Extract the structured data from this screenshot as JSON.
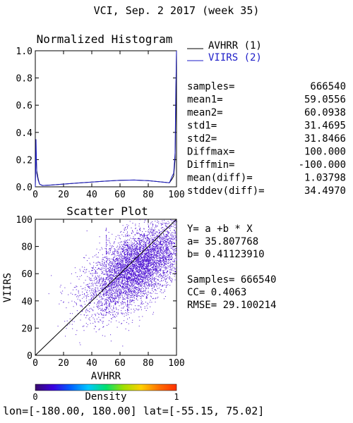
{
  "header": {
    "title": "VCI,  Sep. 2 2017 (week 35)"
  },
  "colors": {
    "avhrr": "#000000",
    "viirs": "#1c1cc8",
    "point": "#4b0fd2",
    "axis": "#000000"
  },
  "chart_data": [
    {
      "type": "line",
      "title": "Normalized Histogram",
      "xlim": [
        0,
        100
      ],
      "ylim": [
        0,
        1.0
      ],
      "xticks": [
        "0",
        "20",
        "40",
        "60",
        "80",
        "100"
      ],
      "yticks": [
        "0.0",
        "0.2",
        "0.4",
        "0.6",
        "0.8",
        "1.0"
      ],
      "legend": {
        "placement": "right-top",
        "entries": [
          "AVHRR (1)",
          "VIIRS (2)"
        ]
      },
      "series": [
        {
          "name": "AVHRR (1)",
          "x": [
            0,
            0.5,
            1,
            2,
            3,
            5,
            10,
            20,
            30,
            40,
            50,
            60,
            70,
            80,
            90,
            95,
            97,
            98,
            99,
            99.5,
            100
          ],
          "y": [
            0.0,
            0.27,
            0.12,
            0.06,
            0.02,
            0.01,
            0.012,
            0.02,
            0.028,
            0.035,
            0.042,
            0.048,
            0.05,
            0.045,
            0.035,
            0.03,
            0.06,
            0.08,
            0.2,
            0.6,
            1.0
          ]
        },
        {
          "name": "VIIRS (2)",
          "x": [
            0,
            0.5,
            1,
            2,
            3,
            5,
            10,
            20,
            30,
            40,
            50,
            60,
            70,
            80,
            90,
            95,
            97,
            98,
            99,
            99.5,
            100
          ],
          "y": [
            0.0,
            0.35,
            0.1,
            0.05,
            0.02,
            0.01,
            0.012,
            0.02,
            0.028,
            0.035,
            0.042,
            0.048,
            0.05,
            0.045,
            0.035,
            0.03,
            0.08,
            0.1,
            0.25,
            0.7,
            1.0
          ]
        }
      ],
      "stats": [
        {
          "label": "samples=",
          "value": "666540"
        },
        {
          "label": "mean1=",
          "value": "59.0556"
        },
        {
          "label": "mean2=",
          "value": "60.0938"
        },
        {
          "label": "std1=",
          "value": "31.4695"
        },
        {
          "label": "std2=",
          "value": "31.8466"
        },
        {
          "label": "Diffmax=",
          "value": "100.000"
        },
        {
          "label": "Diffmin=",
          "value": "-100.000"
        },
        {
          "label": "mean(diff)=",
          "value": "1.03798"
        },
        {
          "label": "stddev(diff)=",
          "value": "34.4970"
        }
      ]
    },
    {
      "type": "scatter",
      "title": "Scatter Plot",
      "xlabel": "AVHRR",
      "ylabel": "VIIRS",
      "xlim": [
        0,
        100
      ],
      "ylim": [
        0,
        100
      ],
      "xticks": [
        "0",
        "20",
        "40",
        "60",
        "80",
        "100"
      ],
      "yticks": [
        "0",
        "20",
        "40",
        "60",
        "80",
        "100"
      ],
      "regression": {
        "a": 35.807768,
        "b": 0.4112391
      },
      "stats_lines": [
        "Y= a +b * X",
        "a= 35.807768",
        "b= 0.41123910",
        "",
        "Samples= 666540",
        "CC=  0.4063",
        "RMSE= 29.100214"
      ],
      "density_cloud": {
        "x_center": 72,
        "y_center": 65,
        "x_spread": 18,
        "y_spread": 13
      }
    }
  ],
  "colorbar": {
    "label": "Density",
    "min_label": "0",
    "max_label": "1",
    "stops": [
      "#3a0a6e",
      "#3b00e0",
      "#0060ff",
      "#00c8ff",
      "#00e070",
      "#a0e000",
      "#ffd000",
      "#ff7000",
      "#ff3000"
    ]
  },
  "footer": {
    "text": "lon=[-180.00, 180.00] lat=[-55.15, 75.02]"
  }
}
